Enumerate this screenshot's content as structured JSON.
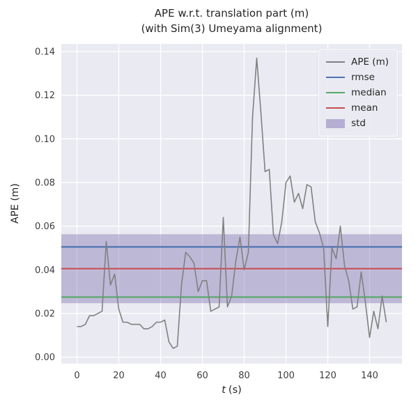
{
  "chart_data": {
    "type": "line",
    "title": "APE w.r.t. translation part (m)",
    "subtitle": "(with Sim(3) Umeyama alignment)",
    "xlabel": "t (s)",
    "xlabel_var": "t",
    "xlabel_unit": "(s)",
    "ylabel": "APE (m)",
    "xlim": [
      -7.5,
      155.5
    ],
    "ylim": [
      -0.003,
      0.1435
    ],
    "grid": true,
    "legend_position": "upper right",
    "xticks": [
      0,
      20,
      40,
      60,
      80,
      100,
      120,
      140
    ],
    "xtick_labels": [
      "0",
      "20",
      "40",
      "60",
      "80",
      "100",
      "120",
      "140"
    ],
    "yticks": [
      0.0,
      0.02,
      0.04,
      0.06,
      0.08,
      0.1,
      0.12,
      0.14
    ],
    "ytick_labels": [
      "0.00",
      "0.02",
      "0.04",
      "0.06",
      "0.08",
      "0.10",
      "0.12",
      "0.14"
    ],
    "series": [
      {
        "name": "APE (m)",
        "type": "line",
        "color": "#808080",
        "x": [
          0,
          2,
          4,
          6,
          8,
          10,
          12,
          14,
          16,
          18,
          20,
          22,
          24,
          26,
          28,
          30,
          32,
          34,
          36,
          38,
          40,
          42,
          44,
          46,
          48,
          50,
          52,
          54,
          56,
          58,
          60,
          62,
          64,
          66,
          68,
          70,
          72,
          74,
          76,
          78,
          80,
          82,
          84,
          86,
          88,
          90,
          92,
          94,
          96,
          98,
          100,
          102,
          104,
          106,
          108,
          110,
          112,
          114,
          116,
          118,
          120,
          122,
          124,
          126,
          128,
          130,
          132,
          134,
          136,
          138,
          140,
          142,
          144,
          146,
          148
        ],
        "y": [
          0.014,
          0.014,
          0.015,
          0.019,
          0.019,
          0.02,
          0.021,
          0.053,
          0.033,
          0.038,
          0.022,
          0.016,
          0.016,
          0.015,
          0.015,
          0.015,
          0.013,
          0.013,
          0.014,
          0.016,
          0.016,
          0.017,
          0.007,
          0.004,
          0.005,
          0.033,
          0.048,
          0.046,
          0.043,
          0.03,
          0.035,
          0.035,
          0.021,
          0.022,
          0.023,
          0.064,
          0.023,
          0.028,
          0.044,
          0.055,
          0.04,
          0.048,
          0.11,
          0.137,
          0.112,
          0.085,
          0.086,
          0.056,
          0.052,
          0.062,
          0.08,
          0.083,
          0.071,
          0.075,
          0.068,
          0.079,
          0.078,
          0.062,
          0.057,
          0.05,
          0.014,
          0.05,
          0.045,
          0.06,
          0.042,
          0.035,
          0.022,
          0.023,
          0.039,
          0.025,
          0.009,
          0.021,
          0.013,
          0.028,
          0.016
        ]
      }
    ],
    "stats": {
      "rmse": {
        "value": 0.0505,
        "color": "#4C72B0"
      },
      "median": {
        "value": 0.0275,
        "color": "#55A868"
      },
      "mean": {
        "value": 0.0405,
        "color": "#C44E52"
      },
      "std": {
        "value": 0.0158,
        "band": [
          0.0247,
          0.0563
        ],
        "color": "#8172B2"
      }
    },
    "legend": [
      {
        "label": "APE (m)",
        "swatch": "line",
        "color": "#808080"
      },
      {
        "label": "rmse",
        "swatch": "line",
        "color": "#4C72B0"
      },
      {
        "label": "median",
        "swatch": "line",
        "color": "#55A868"
      },
      {
        "label": "mean",
        "swatch": "line",
        "color": "#C44E52"
      },
      {
        "label": "std",
        "swatch": "patch",
        "color": "#8172B2"
      }
    ],
    "colors": {
      "figure_bg": "#FFFFFF",
      "axes_bg": "#EAEAF2",
      "grid": "#FFFFFF",
      "text": "#262626"
    }
  }
}
